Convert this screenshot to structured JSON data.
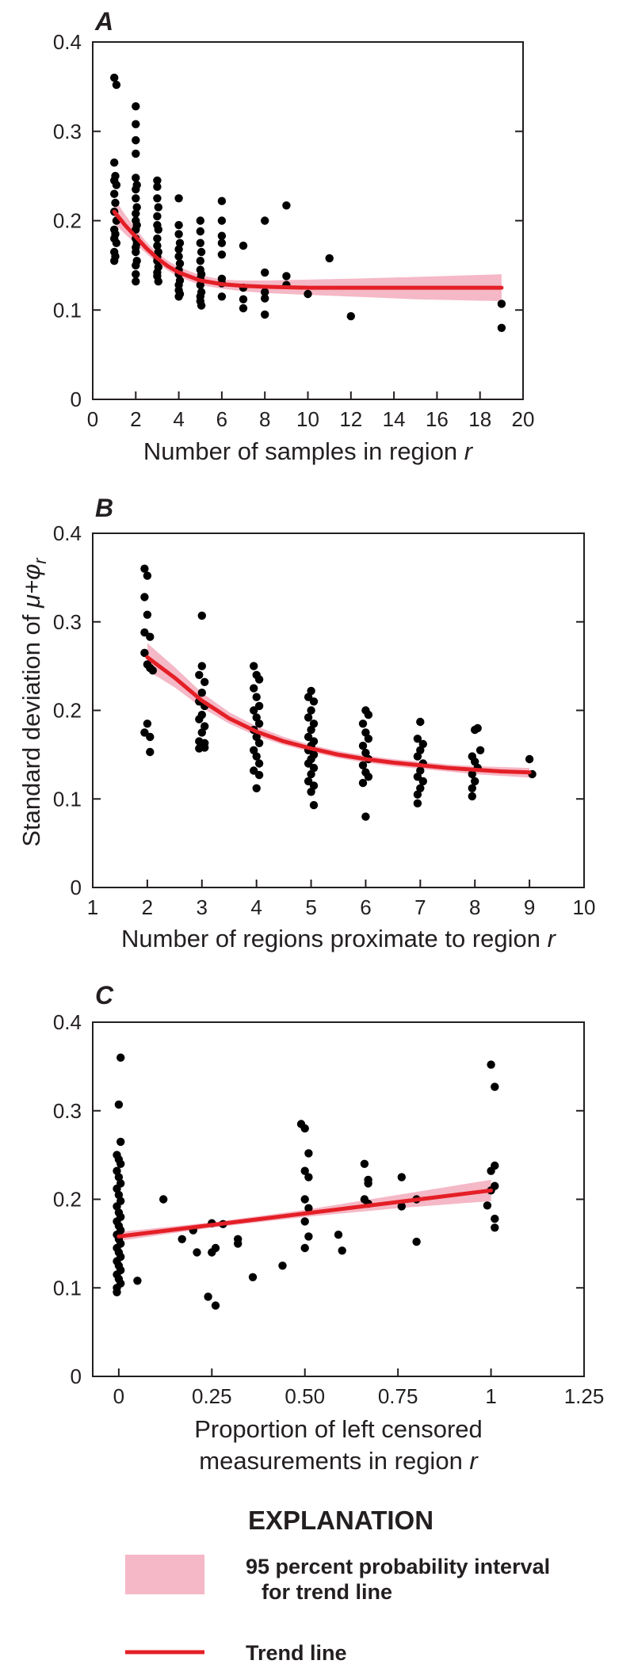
{
  "chart_data": [
    {
      "panel": "A",
      "type": "scatter",
      "xlabel": "Number of samples in region ",
      "xlabel_var": "r",
      "xlim": [
        0,
        20
      ],
      "ylim": [
        0,
        0.4
      ],
      "x_ticks": [
        0,
        2,
        4,
        6,
        8,
        10,
        12,
        14,
        16,
        18,
        20
      ],
      "y_ticks": [
        0,
        0.1,
        0.2,
        0.3,
        0.4
      ],
      "trend": {
        "x": [
          1,
          1.5,
          2,
          2.5,
          3,
          3.5,
          4,
          5,
          6,
          7,
          8,
          10,
          12,
          15,
          19
        ],
        "y": [
          0.21,
          0.195,
          0.182,
          0.169,
          0.158,
          0.149,
          0.142,
          0.133,
          0.129,
          0.127,
          0.126,
          0.125,
          0.125,
          0.125,
          0.125
        ],
        "lower": [
          0.197,
          0.185,
          0.174,
          0.163,
          0.153,
          0.144,
          0.137,
          0.128,
          0.124,
          0.121,
          0.119,
          0.117,
          0.115,
          0.112,
          0.11
        ],
        "upper": [
          0.225,
          0.207,
          0.191,
          0.176,
          0.164,
          0.155,
          0.148,
          0.139,
          0.134,
          0.133,
          0.133,
          0.134,
          0.135,
          0.137,
          0.14
        ]
      },
      "points": [
        [
          1,
          0.36
        ],
        [
          1.1,
          0.352
        ],
        [
          1,
          0.265
        ],
        [
          1.05,
          0.25
        ],
        [
          1,
          0.245
        ],
        [
          1.1,
          0.24
        ],
        [
          1,
          0.23
        ],
        [
          1.05,
          0.22
        ],
        [
          1,
          0.21
        ],
        [
          1.1,
          0.2
        ],
        [
          1,
          0.19
        ],
        [
          1.05,
          0.185
        ],
        [
          1,
          0.18
        ],
        [
          1.1,
          0.175
        ],
        [
          1,
          0.165
        ],
        [
          1.05,
          0.16
        ],
        [
          1,
          0.155
        ],
        [
          2,
          0.328
        ],
        [
          2,
          0.308
        ],
        [
          2,
          0.29
        ],
        [
          2,
          0.275
        ],
        [
          2,
          0.248
        ],
        [
          2.05,
          0.24
        ],
        [
          2,
          0.235
        ],
        [
          2,
          0.225
        ],
        [
          2.05,
          0.215
        ],
        [
          2,
          0.208
        ],
        [
          2,
          0.2
        ],
        [
          2.05,
          0.195
        ],
        [
          2,
          0.19
        ],
        [
          2,
          0.18
        ],
        [
          2.05,
          0.175
        ],
        [
          2,
          0.17
        ],
        [
          2,
          0.165
        ],
        [
          2.05,
          0.155
        ],
        [
          2,
          0.15
        ],
        [
          2,
          0.14
        ],
        [
          2,
          0.132
        ],
        [
          3,
          0.245
        ],
        [
          3,
          0.238
        ],
        [
          3,
          0.225
        ],
        [
          3.05,
          0.215
        ],
        [
          3,
          0.205
        ],
        [
          3,
          0.195
        ],
        [
          3.05,
          0.19
        ],
        [
          3,
          0.18
        ],
        [
          3,
          0.172
        ],
        [
          3.05,
          0.165
        ],
        [
          3,
          0.16
        ],
        [
          3,
          0.155
        ],
        [
          3.05,
          0.148
        ],
        [
          3,
          0.142
        ],
        [
          3,
          0.138
        ],
        [
          3.05,
          0.132
        ],
        [
          4,
          0.225
        ],
        [
          4,
          0.195
        ],
        [
          4,
          0.185
        ],
        [
          4.05,
          0.175
        ],
        [
          4,
          0.168
        ],
        [
          4,
          0.16
        ],
        [
          4.05,
          0.152
        ],
        [
          4,
          0.145
        ],
        [
          4,
          0.14
        ],
        [
          4.05,
          0.133
        ],
        [
          4,
          0.128
        ],
        [
          4,
          0.122
        ],
        [
          4.05,
          0.118
        ],
        [
          4,
          0.115
        ],
        [
          5,
          0.2
        ],
        [
          5,
          0.188
        ],
        [
          5,
          0.175
        ],
        [
          5.05,
          0.165
        ],
        [
          5,
          0.155
        ],
        [
          5,
          0.145
        ],
        [
          5.05,
          0.14
        ],
        [
          5,
          0.135
        ],
        [
          5,
          0.128
        ],
        [
          5.05,
          0.12
        ],
        [
          5,
          0.115
        ],
        [
          5,
          0.11
        ],
        [
          5.05,
          0.105
        ],
        [
          6,
          0.222
        ],
        [
          6,
          0.2
        ],
        [
          6,
          0.183
        ],
        [
          6,
          0.175
        ],
        [
          6,
          0.162
        ],
        [
          6,
          0.135
        ],
        [
          6,
          0.13
        ],
        [
          6,
          0.115
        ],
        [
          7,
          0.172
        ],
        [
          7,
          0.125
        ],
        [
          7,
          0.112
        ],
        [
          7,
          0.102
        ],
        [
          8,
          0.2
        ],
        [
          8,
          0.142
        ],
        [
          8,
          0.12
        ],
        [
          8,
          0.113
        ],
        [
          8,
          0.095
        ],
        [
          9,
          0.217
        ],
        [
          9,
          0.138
        ],
        [
          9,
          0.128
        ],
        [
          10,
          0.118
        ],
        [
          11,
          0.158
        ],
        [
          12,
          0.093
        ],
        [
          19,
          0.107
        ],
        [
          19,
          0.08
        ]
      ]
    },
    {
      "panel": "B",
      "type": "scatter",
      "xlabel": "Number of regions proximate to region ",
      "xlabel_var": "r",
      "ylabel": "Standard deviation of ",
      "ylabel_math": "μ+φ",
      "ylabel_sub": "r",
      "xlim": [
        1,
        10
      ],
      "ylim": [
        0,
        0.4
      ],
      "x_ticks": [
        1,
        2,
        3,
        4,
        5,
        6,
        7,
        8,
        9,
        10
      ],
      "y_ticks": [
        0,
        0.1,
        0.2,
        0.3,
        0.4
      ],
      "trend": {
        "x": [
          2,
          2.5,
          3,
          3.5,
          4,
          4.5,
          5,
          5.5,
          6,
          6.5,
          7,
          7.5,
          8,
          8.5,
          9
        ],
        "y": [
          0.26,
          0.237,
          0.211,
          0.191,
          0.176,
          0.165,
          0.157,
          0.15,
          0.145,
          0.141,
          0.138,
          0.135,
          0.133,
          0.131,
          0.13
        ],
        "lower": [
          0.245,
          0.226,
          0.203,
          0.185,
          0.171,
          0.161,
          0.153,
          0.146,
          0.141,
          0.137,
          0.134,
          0.131,
          0.128,
          0.126,
          0.124
        ],
        "upper": [
          0.276,
          0.249,
          0.22,
          0.198,
          0.182,
          0.17,
          0.161,
          0.154,
          0.149,
          0.145,
          0.142,
          0.139,
          0.137,
          0.136,
          0.135
        ]
      },
      "points": [
        [
          1.95,
          0.36
        ],
        [
          2,
          0.352
        ],
        [
          1.95,
          0.328
        ],
        [
          2,
          0.308
        ],
        [
          1.95,
          0.288
        ],
        [
          2.05,
          0.283
        ],
        [
          1.95,
          0.265
        ],
        [
          2,
          0.252
        ],
        [
          2.05,
          0.248
        ],
        [
          2.1,
          0.245
        ],
        [
          2,
          0.185
        ],
        [
          1.95,
          0.175
        ],
        [
          2.05,
          0.17
        ],
        [
          2.05,
          0.153
        ],
        [
          3,
          0.307
        ],
        [
          3,
          0.25
        ],
        [
          2.95,
          0.24
        ],
        [
          3.05,
          0.232
        ],
        [
          3,
          0.22
        ],
        [
          2.95,
          0.21
        ],
        [
          3.05,
          0.205
        ],
        [
          3,
          0.195
        ],
        [
          2.95,
          0.19
        ],
        [
          3.05,
          0.182
        ],
        [
          3,
          0.175
        ],
        [
          2.95,
          0.165
        ],
        [
          3.05,
          0.158
        ],
        [
          2.95,
          0.157
        ],
        [
          3.05,
          0.163
        ],
        [
          3.95,
          0.25
        ],
        [
          4,
          0.24
        ],
        [
          4.05,
          0.235
        ],
        [
          3.95,
          0.225
        ],
        [
          4,
          0.215
        ],
        [
          4.05,
          0.205
        ],
        [
          3.95,
          0.2
        ],
        [
          4,
          0.192
        ],
        [
          4.05,
          0.185
        ],
        [
          3.95,
          0.178
        ],
        [
          4,
          0.17
        ],
        [
          4.05,
          0.163
        ],
        [
          3.95,
          0.155
        ],
        [
          4,
          0.148
        ],
        [
          4.05,
          0.14
        ],
        [
          3.95,
          0.132
        ],
        [
          4,
          0.112
        ],
        [
          4.05,
          0.127
        ],
        [
          5,
          0.222
        ],
        [
          4.95,
          0.215
        ],
        [
          5.05,
          0.21
        ],
        [
          5,
          0.2
        ],
        [
          4.95,
          0.192
        ],
        [
          5.05,
          0.185
        ],
        [
          5,
          0.178
        ],
        [
          4.95,
          0.17
        ],
        [
          5.05,
          0.165
        ],
        [
          5,
          0.16
        ],
        [
          4.95,
          0.155
        ],
        [
          5.05,
          0.15
        ],
        [
          5,
          0.145
        ],
        [
          4.95,
          0.14
        ],
        [
          5.05,
          0.135
        ],
        [
          5,
          0.128
        ],
        [
          4.95,
          0.12
        ],
        [
          5.05,
          0.115
        ],
        [
          5,
          0.108
        ],
        [
          5.05,
          0.093
        ],
        [
          6,
          0.2
        ],
        [
          6.05,
          0.195
        ],
        [
          5.95,
          0.185
        ],
        [
          6,
          0.175
        ],
        [
          6.05,
          0.168
        ],
        [
          5.95,
          0.16
        ],
        [
          6,
          0.152
        ],
        [
          6.05,
          0.145
        ],
        [
          5.95,
          0.138
        ],
        [
          6,
          0.13
        ],
        [
          6.05,
          0.125
        ],
        [
          5.95,
          0.118
        ],
        [
          6,
          0.08
        ],
        [
          7,
          0.187
        ],
        [
          6.95,
          0.168
        ],
        [
          7.05,
          0.162
        ],
        [
          7,
          0.155
        ],
        [
          6.95,
          0.148
        ],
        [
          7.05,
          0.14
        ],
        [
          7,
          0.132
        ],
        [
          6.95,
          0.125
        ],
        [
          7.05,
          0.12
        ],
        [
          7,
          0.112
        ],
        [
          6.95,
          0.105
        ],
        [
          6.95,
          0.095
        ],
        [
          8.05,
          0.18
        ],
        [
          8,
          0.178
        ],
        [
          8.1,
          0.155
        ],
        [
          7.95,
          0.148
        ],
        [
          8,
          0.142
        ],
        [
          8.05,
          0.135
        ],
        [
          7.95,
          0.128
        ],
        [
          8,
          0.12
        ],
        [
          7.95,
          0.112
        ],
        [
          7.95,
          0.103
        ],
        [
          9,
          0.145
        ],
        [
          9.05,
          0.128
        ]
      ]
    },
    {
      "panel": "C",
      "type": "scatter",
      "xlabel_lines": [
        "Proportion of left censored",
        "measurements in region "
      ],
      "xlabel_var": "r",
      "xlim": [
        -0.07,
        1.25
      ],
      "ylim": [
        0,
        0.4
      ],
      "x_ticks": [
        0,
        0.25,
        0.5,
        0.75,
        1,
        1.25
      ],
      "x_tick_labels": [
        "0",
        "0.25",
        "0.50",
        "0.75",
        "1",
        "1.25"
      ],
      "y_ticks": [
        0,
        0.1,
        0.2,
        0.3,
        0.4
      ],
      "trend": {
        "x": [
          0,
          0.25,
          0.5,
          0.75,
          1
        ],
        "y": [
          0.158,
          0.171,
          0.184,
          0.197,
          0.21
        ],
        "lower": [
          0.153,
          0.168,
          0.18,
          0.19,
          0.198
        ],
        "upper": [
          0.163,
          0.174,
          0.188,
          0.205,
          0.222
        ]
      },
      "points": [
        [
          0.005,
          0.36
        ],
        [
          0,
          0.307
        ],
        [
          0.005,
          0.265
        ],
        [
          -0.005,
          0.25
        ],
        [
          0,
          0.245
        ],
        [
          0.005,
          0.24
        ],
        [
          -0.005,
          0.232
        ],
        [
          0,
          0.225
        ],
        [
          0.005,
          0.218
        ],
        [
          -0.005,
          0.212
        ],
        [
          0,
          0.205
        ],
        [
          0.005,
          0.198
        ],
        [
          -0.005,
          0.192
        ],
        [
          0,
          0.185
        ],
        [
          0.005,
          0.18
        ],
        [
          -0.005,
          0.175
        ],
        [
          0,
          0.17
        ],
        [
          0.005,
          0.165
        ],
        [
          -0.005,
          0.16
        ],
        [
          0,
          0.155
        ],
        [
          0.005,
          0.15
        ],
        [
          -0.005,
          0.145
        ],
        [
          0,
          0.14
        ],
        [
          0.005,
          0.135
        ],
        [
          -0.005,
          0.13
        ],
        [
          0,
          0.125
        ],
        [
          0.005,
          0.12
        ],
        [
          -0.005,
          0.115
        ],
        [
          0,
          0.11
        ],
        [
          0.005,
          0.105
        ],
        [
          -0.005,
          0.1
        ],
        [
          -0.005,
          0.095
        ],
        [
          0.05,
          0.108
        ],
        [
          0.12,
          0.2
        ],
        [
          0.17,
          0.155
        ],
        [
          0.2,
          0.165
        ],
        [
          0.21,
          0.14
        ],
        [
          0.24,
          0.09
        ],
        [
          0.25,
          0.14
        ],
        [
          0.25,
          0.173
        ],
        [
          0.26,
          0.08
        ],
        [
          0.26,
          0.145
        ],
        [
          0.28,
          0.172
        ],
        [
          0.32,
          0.15
        ],
        [
          0.32,
          0.155
        ],
        [
          0.36,
          0.112
        ],
        [
          0.44,
          0.125
        ],
        [
          0.49,
          0.285
        ],
        [
          0.5,
          0.28
        ],
        [
          0.51,
          0.252
        ],
        [
          0.5,
          0.232
        ],
        [
          0.51,
          0.225
        ],
        [
          0.5,
          0.2
        ],
        [
          0.51,
          0.19
        ],
        [
          0.5,
          0.175
        ],
        [
          0.51,
          0.158
        ],
        [
          0.5,
          0.145
        ],
        [
          0.59,
          0.16
        ],
        [
          0.6,
          0.142
        ],
        [
          0.66,
          0.24
        ],
        [
          0.67,
          0.222
        ],
        [
          0.67,
          0.218
        ],
        [
          0.66,
          0.2
        ],
        [
          0.67,
          0.195
        ],
        [
          0.76,
          0.225
        ],
        [
          0.76,
          0.192
        ],
        [
          0.8,
          0.2
        ],
        [
          0.8,
          0.152
        ],
        [
          1,
          0.352
        ],
        [
          1.01,
          0.327
        ],
        [
          1.01,
          0.238
        ],
        [
          1,
          0.232
        ],
        [
          1.01,
          0.215
        ],
        [
          1,
          0.21
        ],
        [
          0.99,
          0.193
        ],
        [
          1.01,
          0.178
        ],
        [
          1.01,
          0.168
        ]
      ]
    }
  ],
  "legend": {
    "title": "EXPLANATION",
    "band_label_line1": "95 percent probability interval",
    "band_label_line2": "for trend line",
    "line_label": "Trend line"
  },
  "colors": {
    "trend_line": "#e41f26",
    "band_fill": "#f5b8c6",
    "points": "#000000",
    "axis": "#231f20"
  }
}
